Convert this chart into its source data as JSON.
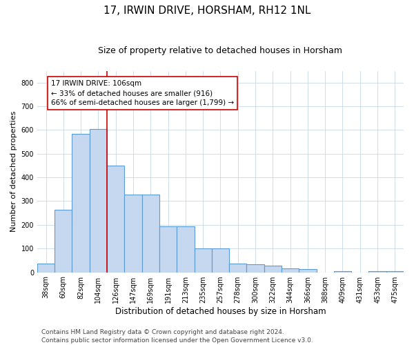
{
  "title1": "17, IRWIN DRIVE, HORSHAM, RH12 1NL",
  "title2": "Size of property relative to detached houses in Horsham",
  "xlabel": "Distribution of detached houses by size in Horsham",
  "ylabel": "Number of detached properties",
  "categories": [
    "38sqm",
    "60sqm",
    "82sqm",
    "104sqm",
    "126sqm",
    "147sqm",
    "169sqm",
    "191sqm",
    "213sqm",
    "235sqm",
    "257sqm",
    "278sqm",
    "300sqm",
    "322sqm",
    "344sqm",
    "366sqm",
    "388sqm",
    "409sqm",
    "431sqm",
    "453sqm",
    "475sqm"
  ],
  "values": [
    36,
    265,
    585,
    605,
    450,
    328,
    328,
    195,
    195,
    100,
    100,
    38,
    35,
    28,
    15,
    12,
    0,
    5,
    0,
    5,
    5
  ],
  "bar_color": "#c5d8f0",
  "bar_edge_color": "#5b9bd5",
  "vline_x_idx": 3.5,
  "vline_color": "#cc0000",
  "annotation_text": "17 IRWIN DRIVE: 106sqm\n← 33% of detached houses are smaller (916)\n66% of semi-detached houses are larger (1,799) →",
  "annotation_box_color": "#ffffff",
  "annotation_box_edge": "#cc0000",
  "ylim": [
    0,
    850
  ],
  "yticks": [
    0,
    100,
    200,
    300,
    400,
    500,
    600,
    700,
    800
  ],
  "footnote1": "Contains HM Land Registry data © Crown copyright and database right 2024.",
  "footnote2": "Contains public sector information licensed under the Open Government Licence v3.0.",
  "bg_color": "#ffffff",
  "grid_color": "#c8d8e8",
  "title1_fontsize": 11,
  "title2_fontsize": 9,
  "xlabel_fontsize": 8.5,
  "ylabel_fontsize": 8,
  "tick_fontsize": 7,
  "footnote_fontsize": 6.5,
  "annot_fontsize": 7.5
}
